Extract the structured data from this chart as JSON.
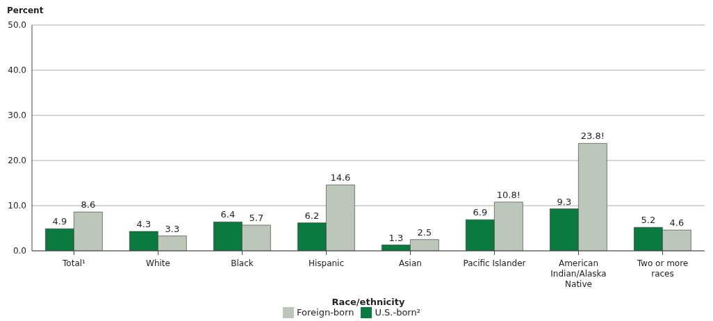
{
  "chart_data": {
    "type": "bar",
    "xlabel": "Race/ethnicity",
    "ylabel": "Percent",
    "categories": [
      "Total¹",
      "White",
      "Black",
      "Hispanic",
      "Asian",
      "Pacific Islander",
      "American Indian/Alaska Native",
      "Two or more races"
    ],
    "series": [
      {
        "name": "U.S.-born²",
        "color": "#0b7a3e",
        "values": [
          4.9,
          4.3,
          6.4,
          6.2,
          1.3,
          6.9,
          9.3,
          5.2
        ],
        "value_labels": [
          "4.9",
          "4.3",
          "6.4",
          "6.2",
          "1.3",
          "6.9",
          "9.3",
          "5.2"
        ]
      },
      {
        "name": "Foreign-born",
        "color": "#bcc7b9",
        "values": [
          8.6,
          3.3,
          5.7,
          14.6,
          2.5,
          10.8,
          23.8,
          4.6
        ],
        "value_labels": [
          "8.6",
          "3.3",
          "5.7",
          "14.6",
          "2.5",
          "10.8!",
          "23.8!",
          "4.6"
        ]
      }
    ],
    "ylim": [
      0,
      50
    ],
    "yticks": [
      {
        "value": 0,
        "label": "0.0"
      },
      {
        "value": 10,
        "label": "10.0"
      },
      {
        "value": 20,
        "label": "20.0"
      },
      {
        "value": 30,
        "label": "30.0"
      },
      {
        "value": 40,
        "label": "40.0"
      },
      {
        "value": 50,
        "label": "50.0"
      }
    ],
    "grid": "y",
    "legend": "bottom"
  }
}
